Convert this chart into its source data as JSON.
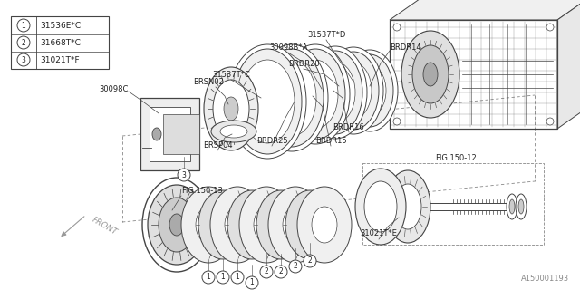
{
  "bg_color": "#ffffff",
  "legend": [
    {
      "num": "1",
      "code": "31536E*C"
    },
    {
      "num": "2",
      "code": "31668T*C"
    },
    {
      "num": "3",
      "code": "31021T*F"
    }
  ],
  "watermark": "A150001193",
  "line_color": "#444444",
  "text_color": "#222222",
  "font_size": 6.5,
  "label_font_size": 6.0,
  "dashed_line_color": "#888888"
}
